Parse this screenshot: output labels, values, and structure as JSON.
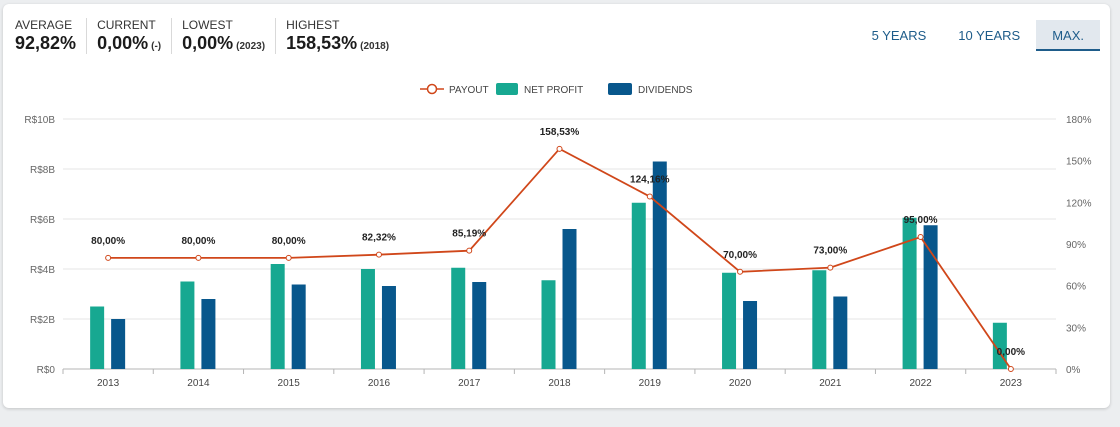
{
  "summary": {
    "average": {
      "label": "AVERAGE",
      "value": "92,82%"
    },
    "current": {
      "label": "CURRENT",
      "value": "0,00%",
      "note": "(-)"
    },
    "lowest": {
      "label": "LOWEST",
      "value": "0,00%",
      "note": "(2023)"
    },
    "highest": {
      "label": "HIGHEST",
      "value": "158,53%",
      "note": "(2018)"
    }
  },
  "periods": {
    "five_years": "5 YEARS",
    "ten_years": "10 YEARS",
    "max": "MAX.",
    "active": "max"
  },
  "colors": {
    "net_profit": "#17a891",
    "dividends": "#08578c",
    "payout": "#d0471a",
    "grid": "#e4e4e4",
    "axis_text": "#666666"
  },
  "chart_data": {
    "type": "bar",
    "categories": [
      "2013",
      "2014",
      "2015",
      "2016",
      "2017",
      "2018",
      "2019",
      "2020",
      "2021",
      "2022",
      "2023"
    ],
    "series": [
      {
        "name": "NET PROFIT",
        "type": "bar",
        "axis": "left",
        "values": [
          2.5,
          3.5,
          4.2,
          4.0,
          4.05,
          3.55,
          6.65,
          3.85,
          3.95,
          6.05,
          1.85
        ]
      },
      {
        "name": "DIVIDENDS",
        "type": "bar",
        "axis": "left",
        "values": [
          2.0,
          2.8,
          3.38,
          3.32,
          3.48,
          5.6,
          8.3,
          2.72,
          2.9,
          5.75,
          0
        ]
      },
      {
        "name": "PAYOUT",
        "type": "line",
        "axis": "right",
        "values": [
          80.0,
          80.0,
          80.0,
          82.32,
          85.19,
          158.53,
          124.16,
          70.0,
          73.0,
          95.0,
          0.0
        ],
        "labels": [
          "80,00%",
          "80,00%",
          "80,00%",
          "82,32%",
          "85,19%",
          "158,53%",
          "124,16%",
          "70,00%",
          "73,00%",
          "95,00%",
          "0,00%"
        ]
      }
    ],
    "legend": [
      "PAYOUT",
      "NET PROFIT",
      "DIVIDENDS"
    ],
    "y_left": {
      "min": 0,
      "max": 10,
      "ticks": [
        0,
        2,
        4,
        6,
        8,
        10
      ],
      "tick_labels": [
        "R$0",
        "R$2B",
        "R$4B",
        "R$6B",
        "R$8B",
        "R$10B"
      ]
    },
    "y_right": {
      "min": 0,
      "max": 180,
      "ticks": [
        0,
        30,
        60,
        90,
        120,
        150,
        180
      ],
      "tick_labels": [
        "0%",
        "30%",
        "60%",
        "90%",
        "120%",
        "150%",
        "180%"
      ]
    },
    "grid": true,
    "legend_position": "top-center"
  }
}
